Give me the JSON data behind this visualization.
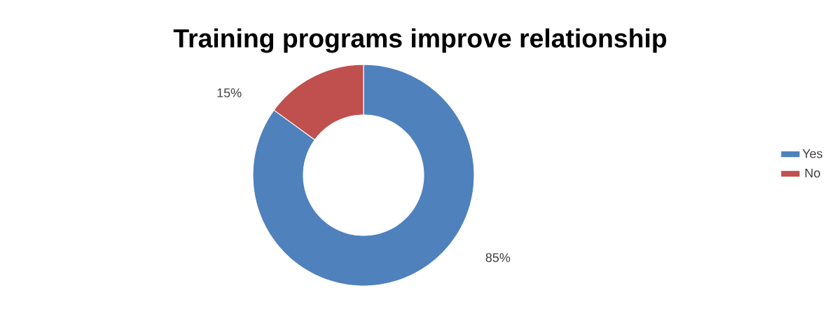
{
  "chart_data": {
    "type": "donut",
    "title": "Training programs improve relationship",
    "categories": [
      "Yes",
      "No"
    ],
    "values": [
      85,
      15
    ],
    "colors": [
      "#4f81bd",
      "#c0504d"
    ],
    "value_labels": [
      "85%",
      "15%"
    ],
    "legend": "right"
  }
}
